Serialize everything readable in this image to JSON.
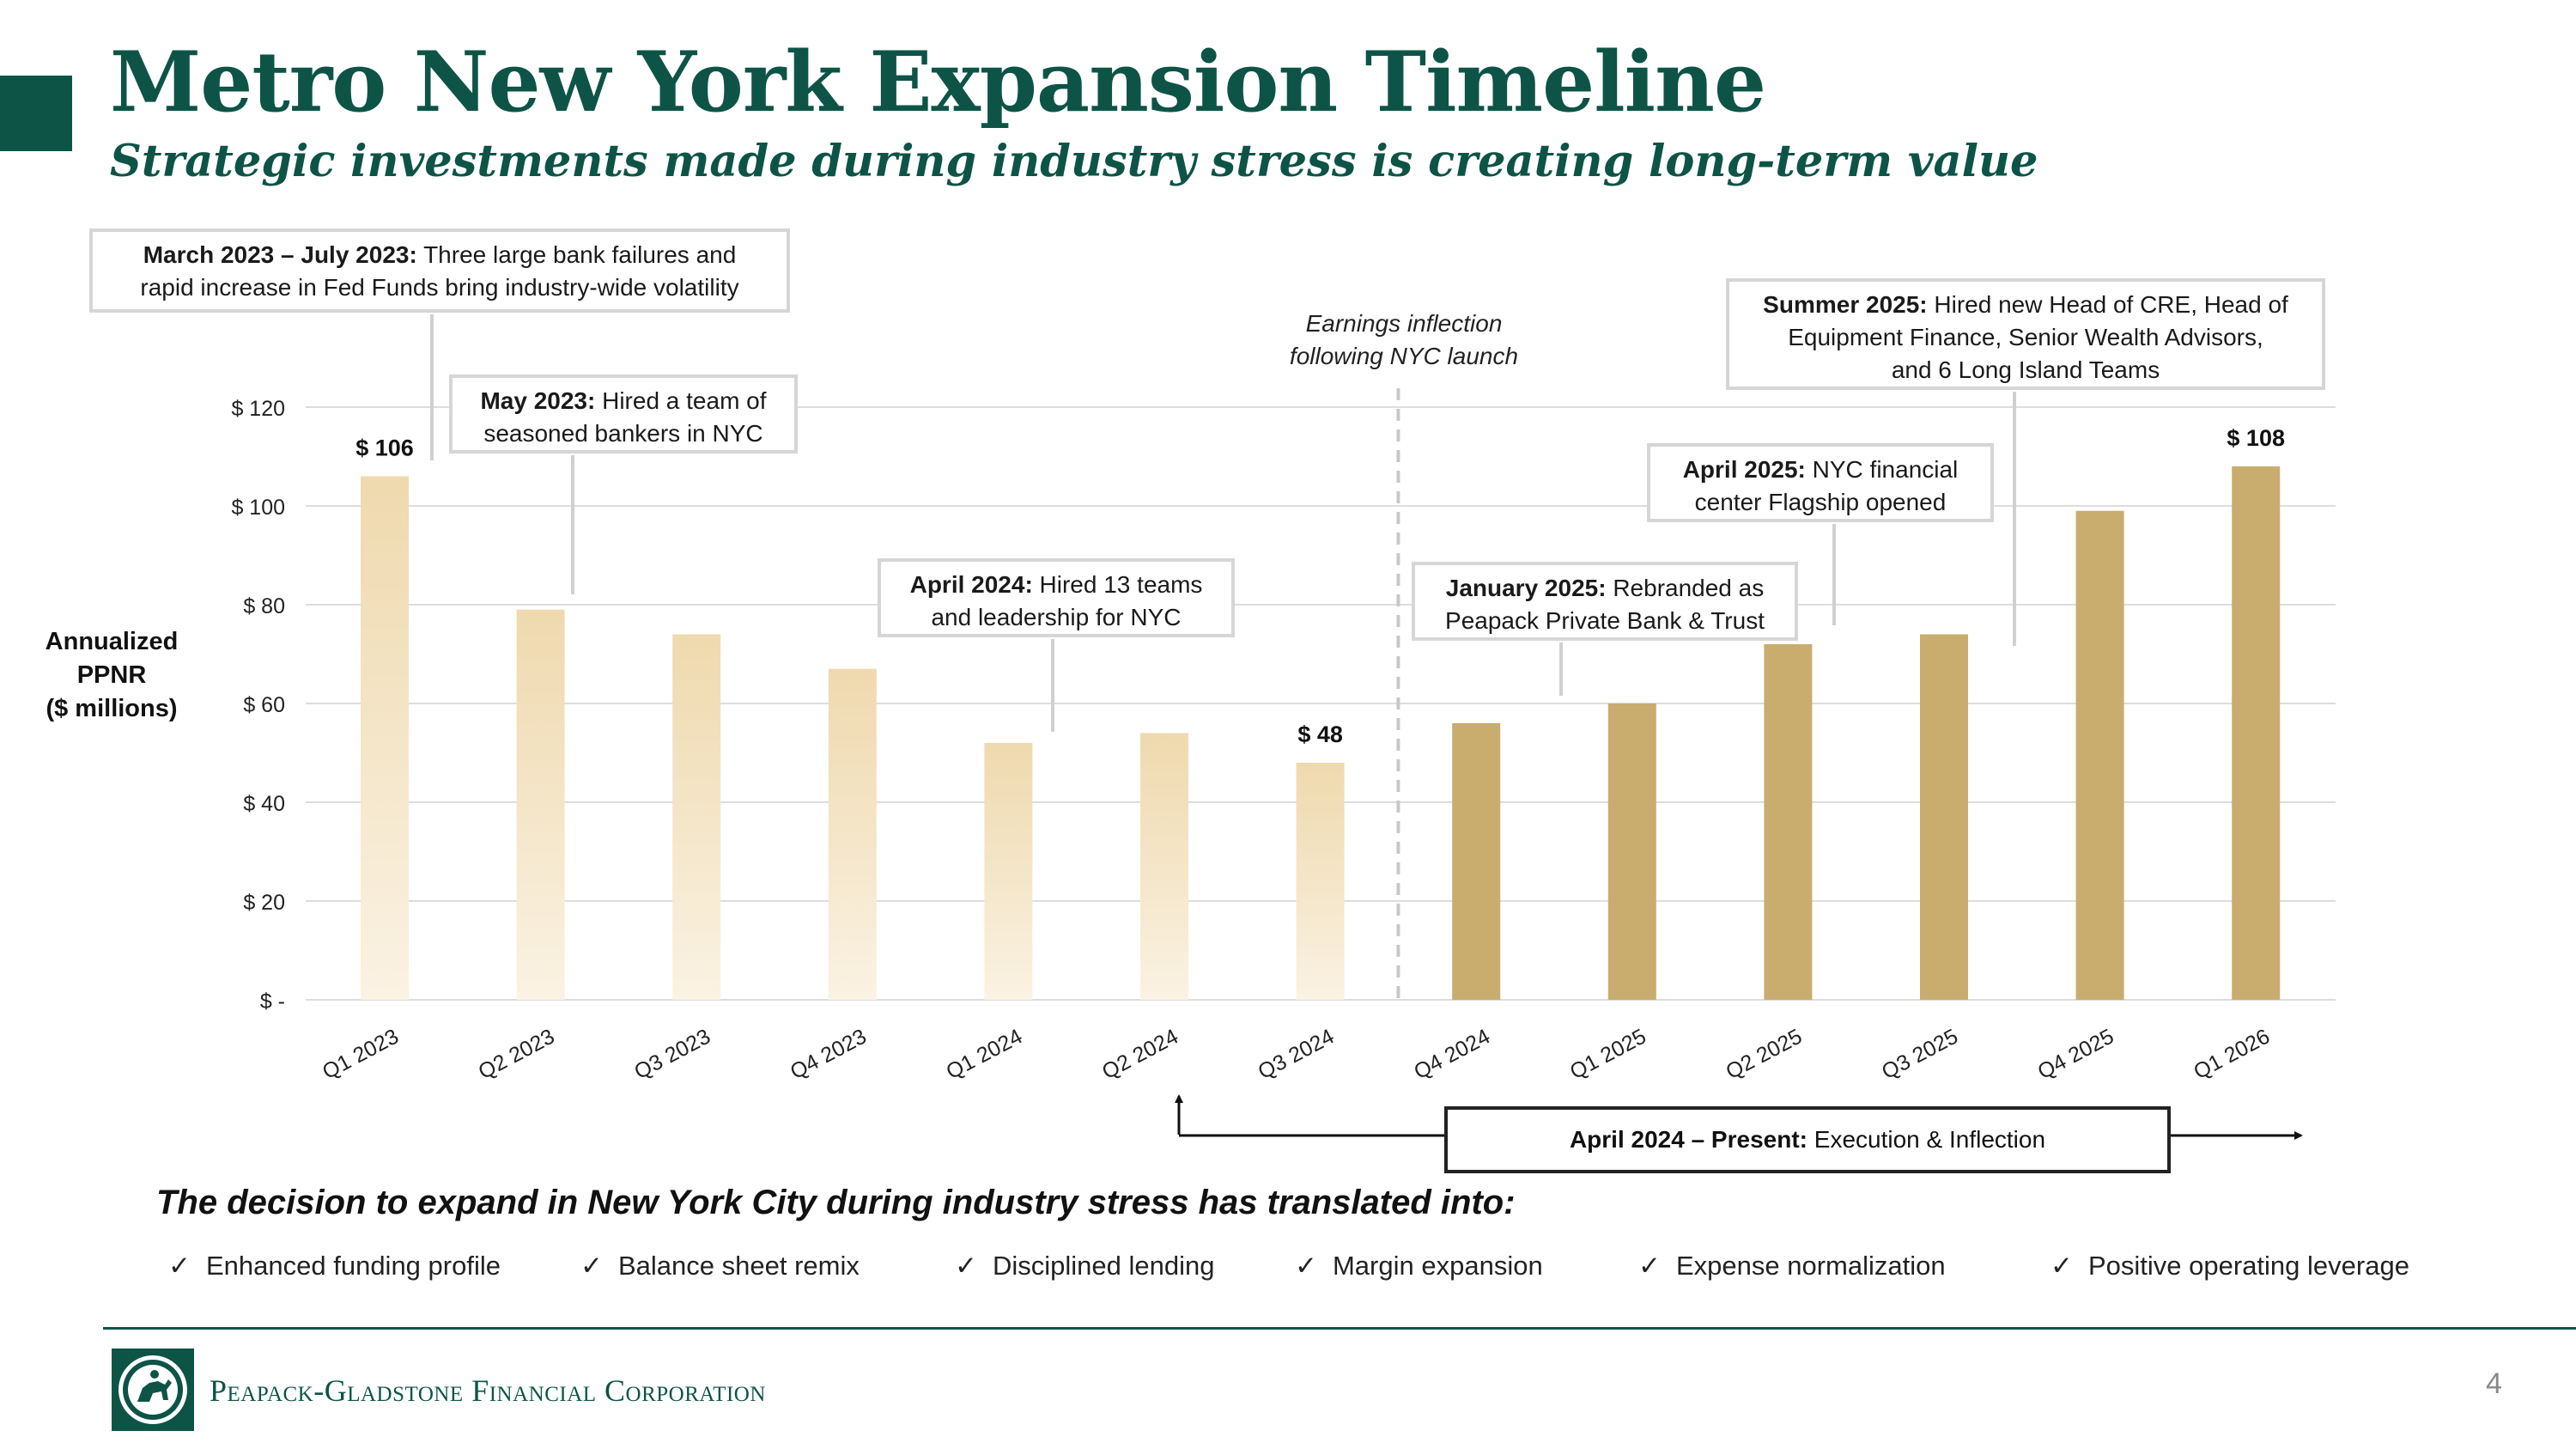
{
  "header": {
    "title": "Metro New York Expansion Timeline",
    "subtitle": "Strategic investments made during industry stress is creating long-term value"
  },
  "colors": {
    "brand_green": "#0d5447",
    "bar_light": "#efd9ae",
    "bar_gold": "#c8ad6e",
    "gridline": "#dddddd"
  },
  "chart_data": {
    "type": "bar",
    "title": "",
    "ylabel": "Annualized PPNR ($ millions)",
    "ylabel_lines": [
      "Annualized",
      "PPNR",
      "($ millions)"
    ],
    "xlabel": "",
    "ylim": [
      0,
      120
    ],
    "yticks": [
      0,
      20,
      40,
      60,
      80,
      100,
      120
    ],
    "ytick_labels": [
      "$ -",
      "$ 20",
      "$ 40",
      "$ 60",
      "$ 80",
      "$ 100",
      "$ 120"
    ],
    "categories": [
      "Q1 2023",
      "Q2 2023",
      "Q3 2023",
      "Q4 2023",
      "Q1 2024",
      "Q2 2024",
      "Q3 2024",
      "Q4 2024",
      "Q1 2025",
      "Q2 2025",
      "Q3 2025",
      "Q4 2025",
      "Q1 2026"
    ],
    "values": [
      106,
      79,
      74,
      67,
      52,
      54,
      48,
      56,
      60,
      72,
      74,
      99,
      108
    ],
    "styles": [
      "gradient",
      "gradient",
      "gradient",
      "gradient",
      "gradient",
      "gradient",
      "gradient",
      "solid",
      "solid",
      "solid",
      "solid",
      "solid",
      "solid"
    ],
    "data_labels": [
      {
        "index": 0,
        "text": "$ 106"
      },
      {
        "index": 6,
        "text": "$ 48"
      },
      {
        "index": 12,
        "text": "$ 108"
      }
    ],
    "inflection_after_index": 6,
    "grid": true
  },
  "callouts": {
    "march2023": {
      "bold": "March 2023 – July 2023:",
      "line1": " Three large bank failures and",
      "line2": "rapid increase in Fed Funds bring industry-wide volatility"
    },
    "may2023": {
      "bold": "May 2023:",
      "line1": " Hired a team of",
      "line2": "seasoned bankers in NYC"
    },
    "april2024": {
      "bold": "April 2024:",
      "line1": " Hired 13 teams",
      "line2": "and leadership for NYC"
    },
    "jan2025": {
      "bold": "January 2025:",
      "line1": " Rebranded as",
      "line2": "Peapack Private Bank & Trust"
    },
    "april2025": {
      "bold": "April 2025:",
      "line1": " NYC financial",
      "line2": "center Flagship opened"
    },
    "summer2025": {
      "bold": "Summer 2025:",
      "line1": " Hired new Head of CRE, Head of",
      "line2": "Equipment Finance, Senior Wealth Advisors,",
      "line3": "and 6 Long Island Teams"
    }
  },
  "inflection_note": {
    "line1": "Earnings inflection",
    "line2": "following NYC launch"
  },
  "execution": {
    "bold": "April 2024 – Present:",
    "rest": " Execution & Inflection"
  },
  "decision": {
    "heading": "The decision to expand in New York City during industry stress has translated into:",
    "check": "✓",
    "items": [
      "Enhanced funding profile",
      "Balance sheet remix",
      "Disciplined lending",
      "Margin expansion",
      "Expense normalization",
      "Positive operating leverage"
    ]
  },
  "footer": {
    "company": "Peapack-Gladstone Financial Corporation",
    "page_number": "4"
  }
}
